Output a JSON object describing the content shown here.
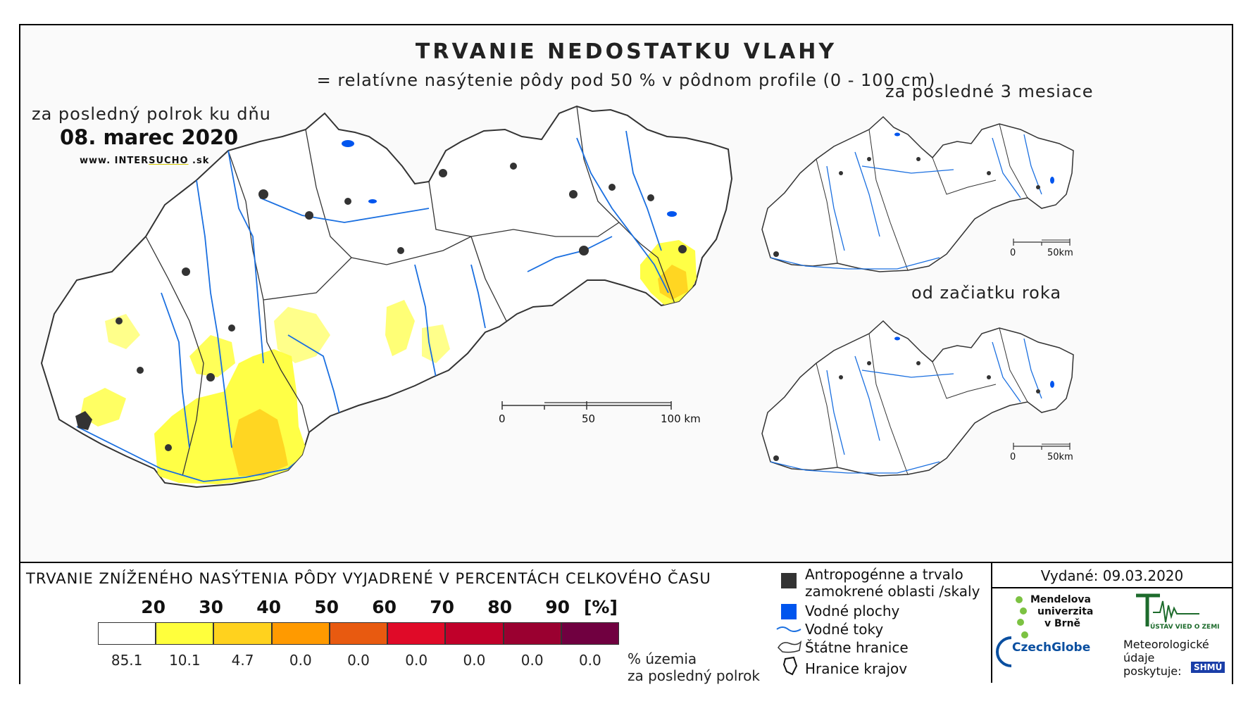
{
  "header": {
    "title": "TRVANIE NEDOSTATKU VLAHY",
    "subtitle": "= relatívne nasýtenie pôdy pod 50 % v pôdnom profile (0 - 100 cm)"
  },
  "main_map": {
    "period_label": "za posledný polrok ku dňu",
    "date": "08. marec 2020",
    "website_prefix": "www. INTER",
    "website_highlight": "SUCHO",
    "website_suffix": " .sk",
    "scale": {
      "ticks": [
        "0",
        "50",
        "100 km"
      ]
    }
  },
  "inset_maps": [
    {
      "label": "za posledné 3 mesiace",
      "scale": {
        "ticks": [
          "0",
          "50km"
        ]
      }
    },
    {
      "label": "od začiatku roka",
      "scale": {
        "ticks": [
          "0",
          "50km"
        ]
      }
    }
  ],
  "legend": {
    "title": "TRVANIE ZNÍŽENÉHO NASÝTENIA PÔDY VYJADRENÉ V PERCENTÁCH CELKOVÉHO ČASU",
    "class_breaks": [
      "20",
      "30",
      "40",
      "50",
      "60",
      "70",
      "80",
      "90"
    ],
    "unit": "[%]",
    "classes": [
      {
        "color": "#ffffff",
        "share": "85.1"
      },
      {
        "color": "#ffff3c",
        "share": "10.1"
      },
      {
        "color": "#ffd21e",
        "share": "4.7"
      },
      {
        "color": "#ff9a00",
        "share": "0.0"
      },
      {
        "color": "#e85a10",
        "share": "0.0"
      },
      {
        "color": "#e00a28",
        "share": "0.0"
      },
      {
        "color": "#c0002a",
        "share": "0.0"
      },
      {
        "color": "#9a0030",
        "share": "0.0"
      },
      {
        "color": "#700040",
        "share": "0.0"
      }
    ],
    "share_desc_line1": "% územia",
    "share_desc_line2": "za posledný polrok",
    "items": {
      "anthropogenic_line1": "Antropogénne a trvalo",
      "anthropogenic_line2": "zamokrené oblasti /skaly",
      "water_bodies": "Vodné plochy",
      "rivers": "Vodné toky",
      "state_border": "Štátne hranice",
      "region_border": "Hranice krajov"
    },
    "colors": {
      "anthropogenic": "#333333",
      "water": "#0055ee",
      "river": "#1a6fe0"
    }
  },
  "credits": {
    "issued": "Vydané: 09.03.2020",
    "mendelu_line1": "Mendelova",
    "mendelu_line2": "univerzita",
    "mendelu_line3": "v Brně",
    "institute": "ÚSTAV VIED O ZEMI",
    "czechglobe": "CzechGlobe",
    "data_provider_line1": "Meteorologické",
    "data_provider_line2": "údaje",
    "data_provider_line3": "poskytuje:",
    "shmu": "SHMÚ"
  }
}
